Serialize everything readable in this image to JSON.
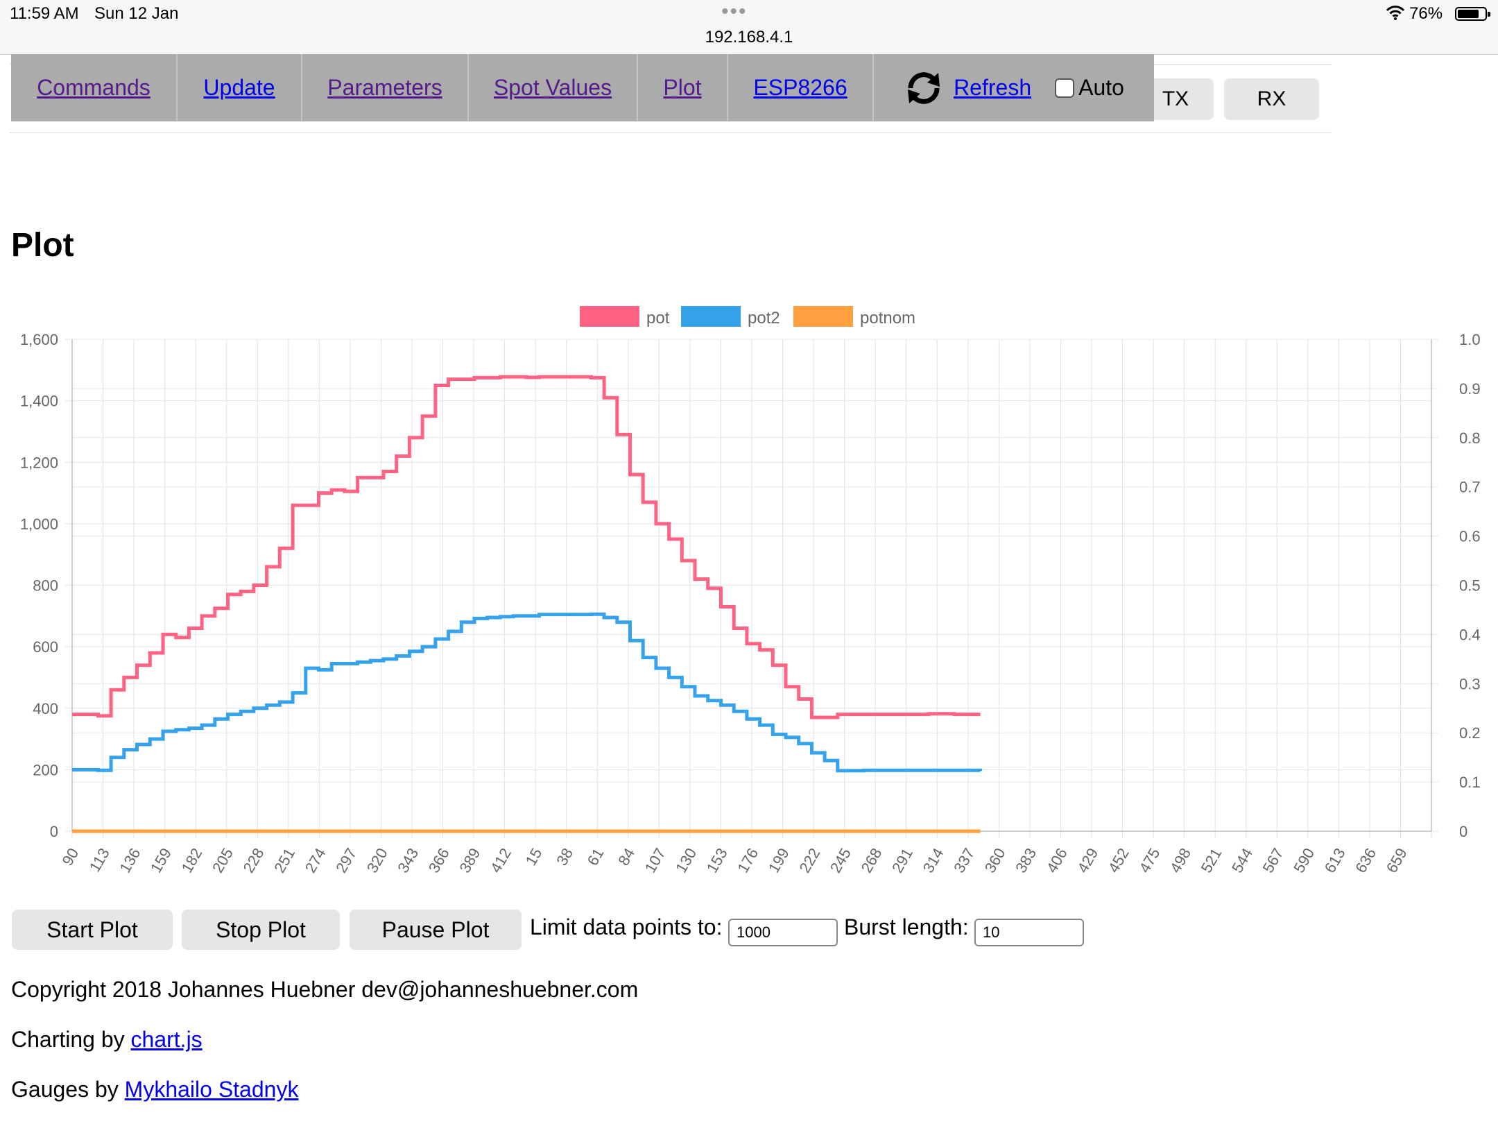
{
  "status_bar": {
    "time": "11:59 AM",
    "date": "Sun 12 Jan",
    "url": "192.168.4.1",
    "battery": "76%"
  },
  "nav": {
    "items": [
      "Commands",
      "Update",
      "Parameters",
      "Spot Values",
      "Plot",
      "ESP8266"
    ],
    "refresh": "Refresh",
    "auto": "Auto"
  },
  "tabs": {
    "tx": "TX",
    "rx": "RX"
  },
  "page_title": "Plot",
  "controls": {
    "start": "Start Plot",
    "stop": "Stop Plot",
    "pause": "Pause Plot",
    "limit_label": "Limit data points to:",
    "limit_value": "1000",
    "burst_label": "Burst length:",
    "burst_value": "10"
  },
  "footer": {
    "copyright": "Copyright 2018 Johannes Huebner dev@johanneshuebner.com",
    "charting_prefix": "Charting by ",
    "charting_link": "chart.js",
    "gauges_prefix": "Gauges by ",
    "gauges_link": "Mykhailo Stadnyk"
  },
  "chart_data": {
    "type": "line",
    "stepped": true,
    "legend": {
      "position": "top",
      "items": [
        "pot",
        "pot2",
        "potnom"
      ]
    },
    "x_tick_labels": [
      "90",
      "113",
      "136",
      "159",
      "182",
      "205",
      "228",
      "251",
      "274",
      "297",
      "320",
      "343",
      "366",
      "389",
      "412",
      "15",
      "38",
      "61",
      "84",
      "107",
      "130",
      "153",
      "176",
      "199",
      "222",
      "245",
      "268",
      "291",
      "314",
      "337",
      "360",
      "383",
      "406",
      "429",
      "452",
      "475",
      "498",
      "521",
      "544",
      "567",
      "590",
      "613",
      "636",
      "659"
    ],
    "y_left": {
      "range": [
        0,
        1600
      ],
      "ticks": [
        "0",
        "200",
        "400",
        "600",
        "800",
        "1,000",
        "1,200",
        "1,400",
        "1,600"
      ]
    },
    "y_right": {
      "range": [
        0,
        1.0
      ],
      "ticks": [
        "0",
        "0.1",
        "0.2",
        "0.3",
        "0.4",
        "0.5",
        "0.6",
        "0.7",
        "0.8",
        "0.9",
        "1.0"
      ]
    },
    "grid": true,
    "series": [
      {
        "name": "pot",
        "color": "#ff6384",
        "values": [
          380,
          380,
          375,
          460,
          500,
          540,
          580,
          640,
          630,
          660,
          700,
          725,
          770,
          780,
          800,
          860,
          920,
          1060,
          1060,
          1100,
          1110,
          1105,
          1150,
          1150,
          1170,
          1220,
          1280,
          1350,
          1450,
          1470,
          1470,
          1475,
          1475,
          1478,
          1478,
          1476,
          1478,
          1478,
          1478,
          1478,
          1475,
          1410,
          1290,
          1160,
          1070,
          1000,
          950,
          880,
          820,
          790,
          730,
          660,
          610,
          590,
          540,
          470,
          430,
          370,
          370,
          380,
          380,
          380,
          380,
          380,
          380,
          380,
          382,
          382,
          380,
          380,
          380
        ]
      },
      {
        "name": "pot2",
        "color": "#36a2eb",
        "values": [
          200,
          200,
          198,
          240,
          265,
          282,
          300,
          325,
          330,
          335,
          345,
          365,
          380,
          390,
          400,
          410,
          420,
          450,
          530,
          525,
          545,
          545,
          550,
          555,
          560,
          570,
          585,
          600,
          625,
          650,
          680,
          692,
          695,
          698,
          700,
          700,
          705,
          705,
          705,
          705,
          706,
          695,
          680,
          620,
          565,
          530,
          500,
          470,
          440,
          425,
          410,
          390,
          365,
          345,
          315,
          305,
          285,
          255,
          230,
          197,
          197,
          198,
          198,
          198,
          198,
          198,
          198,
          198,
          198,
          198,
          196
        ]
      },
      {
        "name": "potnom",
        "color": "#ff9f40",
        "values": [
          0,
          0,
          0,
          0,
          0,
          0,
          0,
          0,
          0,
          0,
          0,
          0,
          0,
          0,
          0,
          0,
          0,
          0,
          0,
          0,
          0,
          0,
          0,
          0,
          0,
          0,
          0,
          0,
          0,
          0,
          0,
          0,
          0,
          0,
          0,
          0,
          0,
          0,
          0,
          0,
          0,
          0,
          0,
          0,
          0,
          0,
          0,
          0,
          0,
          0,
          0,
          0,
          0,
          0,
          0,
          0,
          0,
          0,
          0,
          0,
          0,
          0,
          0,
          0,
          0,
          0,
          0,
          0,
          0,
          0,
          0
        ]
      }
    ]
  }
}
